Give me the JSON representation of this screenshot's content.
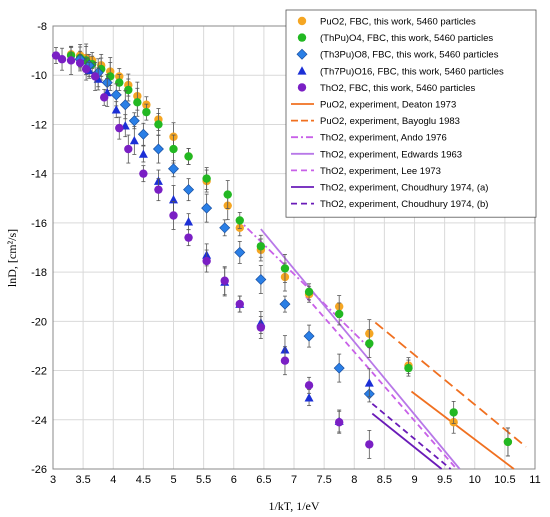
{
  "chart_data": {
    "type": "scatter",
    "title": "",
    "xlabel": "1/kT, 1/eV",
    "ylabel": "lnD, [cm²/s]",
    "xlim": [
      3,
      11
    ],
    "ylim": [
      -26,
      -8
    ],
    "x_ticks": [
      "3",
      "3.5",
      "4",
      "4.5",
      "5",
      "5.5",
      "6",
      "6.5",
      "7",
      "7.5",
      "8",
      "8.5",
      "9",
      "9.5",
      "10",
      "10.5",
      "11"
    ],
    "y_ticks": [
      "-8",
      "-10",
      "-12",
      "-14",
      "-16",
      "-18",
      "-20",
      "-22",
      "-24",
      "-26"
    ],
    "grid": true,
    "legend_position": "top-right",
    "series": [
      {
        "name": "PuO2, FBC, this work, 5460 particles",
        "kind": "scatter",
        "marker": "circle",
        "color": "#f5a623",
        "points": [
          [
            3.3,
            -9.15
          ],
          [
            3.45,
            -9.2
          ],
          [
            3.55,
            -9.3
          ],
          [
            3.65,
            -9.4
          ],
          [
            3.8,
            -9.6
          ],
          [
            3.95,
            -9.85
          ],
          [
            4.1,
            -10.05
          ],
          [
            4.25,
            -10.4
          ],
          [
            4.4,
            -10.85
          ],
          [
            4.55,
            -11.2
          ],
          [
            4.75,
            -11.8
          ],
          [
            5.0,
            -12.5
          ],
          [
            5.25,
            -13.3
          ],
          [
            5.55,
            -14.3
          ],
          [
            5.9,
            -15.3
          ],
          [
            6.1,
            -16.2
          ],
          [
            6.45,
            -17.1
          ],
          [
            6.85,
            -18.2
          ],
          [
            7.25,
            -18.9
          ],
          [
            7.75,
            -19.4
          ],
          [
            8.25,
            -20.5
          ],
          [
            8.9,
            -21.8
          ],
          [
            9.65,
            -24.1
          ],
          [
            10.55,
            -24.9
          ]
        ]
      },
      {
        "name": "(ThPu)O4, FBC, this work, 5460 particles",
        "kind": "scatter",
        "marker": "circle",
        "color": "#22b822",
        "points": [
          [
            3.3,
            -9.2
          ],
          [
            3.45,
            -9.3
          ],
          [
            3.55,
            -9.4
          ],
          [
            3.65,
            -9.55
          ],
          [
            3.8,
            -9.75
          ],
          [
            3.95,
            -10.05
          ],
          [
            4.1,
            -10.3
          ],
          [
            4.25,
            -10.6
          ],
          [
            4.4,
            -11.1
          ],
          [
            4.55,
            -11.5
          ],
          [
            4.75,
            -12.0
          ],
          [
            5.0,
            -13.0
          ],
          [
            5.25,
            -13.3
          ],
          [
            5.55,
            -14.2
          ],
          [
            5.9,
            -14.85
          ],
          [
            6.1,
            -15.9
          ],
          [
            6.45,
            -16.95
          ],
          [
            6.85,
            -17.85
          ],
          [
            7.25,
            -18.8
          ],
          [
            7.75,
            -19.7
          ],
          [
            8.25,
            -20.9
          ],
          [
            8.9,
            -21.9
          ],
          [
            9.65,
            -23.7
          ],
          [
            10.55,
            -24.9
          ]
        ]
      },
      {
        "name": "(Th3Pu)O8, FBC, this work, 5460 particles",
        "kind": "scatter",
        "marker": "diamond",
        "color": "#2a7fe6",
        "points": [
          [
            3.45,
            -9.35
          ],
          [
            3.6,
            -9.6
          ],
          [
            3.75,
            -9.9
          ],
          [
            3.9,
            -10.3
          ],
          [
            4.05,
            -10.8
          ],
          [
            4.2,
            -11.2
          ],
          [
            4.35,
            -11.85
          ],
          [
            4.5,
            -12.4
          ],
          [
            4.75,
            -13.0
          ],
          [
            5.0,
            -13.8
          ],
          [
            5.25,
            -14.65
          ],
          [
            5.55,
            -15.4
          ],
          [
            5.85,
            -16.2
          ],
          [
            6.1,
            -17.2
          ],
          [
            6.45,
            -18.3
          ],
          [
            6.85,
            -19.3
          ],
          [
            7.25,
            -20.6
          ],
          [
            7.75,
            -21.9
          ],
          [
            8.25,
            -22.95
          ]
        ]
      },
      {
        "name": "(Th7Pu)O16, FBC, this work, 5460 particles",
        "kind": "scatter",
        "marker": "triangle",
        "color": "#1b2fd6",
        "points": [
          [
            3.6,
            -9.8
          ],
          [
            3.75,
            -10.15
          ],
          [
            3.9,
            -10.7
          ],
          [
            4.05,
            -11.4
          ],
          [
            4.2,
            -12.05
          ],
          [
            4.35,
            -12.65
          ],
          [
            4.5,
            -13.2
          ],
          [
            4.75,
            -14.3
          ],
          [
            5.0,
            -15.05
          ],
          [
            5.25,
            -15.95
          ],
          [
            5.55,
            -17.3
          ],
          [
            5.85,
            -18.4
          ],
          [
            6.1,
            -19.3
          ],
          [
            6.45,
            -20.05
          ],
          [
            6.85,
            -21.15
          ],
          [
            7.25,
            -23.1
          ],
          [
            7.75,
            -24.05
          ],
          [
            8.25,
            -22.5
          ]
        ]
      },
      {
        "name": "ThO2, FBC, this work, 5460 particles",
        "kind": "scatter",
        "marker": "circle",
        "color": "#7a1fc4",
        "points": [
          [
            3.05,
            -9.2
          ],
          [
            3.15,
            -9.35
          ],
          [
            3.3,
            -9.4
          ],
          [
            3.45,
            -9.5
          ],
          [
            3.55,
            -9.75
          ],
          [
            3.7,
            -10.05
          ],
          [
            3.85,
            -10.9
          ],
          [
            4.1,
            -12.15
          ],
          [
            4.25,
            -13.0
          ],
          [
            4.5,
            -14.0
          ],
          [
            4.75,
            -14.65
          ],
          [
            5.0,
            -15.7
          ],
          [
            5.25,
            -16.6
          ],
          [
            5.55,
            -17.55
          ],
          [
            5.85,
            -18.35
          ],
          [
            6.1,
            -19.3
          ],
          [
            6.45,
            -20.25
          ],
          [
            6.85,
            -21.6
          ],
          [
            7.25,
            -22.6
          ],
          [
            7.75,
            -24.1
          ],
          [
            8.25,
            -25.0
          ]
        ]
      },
      {
        "name": "PuO2, experiment, Deaton 1973",
        "kind": "line",
        "dash": "solid",
        "color": "#f07020",
        "points": [
          [
            8.95,
            -22.85
          ],
          [
            10.65,
            -26.0
          ]
        ]
      },
      {
        "name": "PuO2, experiment, Bayoglu 1983",
        "kind": "line",
        "dash": "long-dash",
        "color": "#f07020",
        "points": [
          [
            8.35,
            -20.05
          ],
          [
            10.85,
            -25.1
          ]
        ]
      },
      {
        "name": "ThO2, experiment, Ando 1976",
        "kind": "line",
        "dash": "dash-dot",
        "color": "#c860e8",
        "points": [
          [
            6.05,
            -15.8
          ],
          [
            8.3,
            -21.2
          ]
        ]
      },
      {
        "name": "ThO2, experiment, Edwards 1963",
        "kind": "line",
        "dash": "solid",
        "color": "#b878e8",
        "points": [
          [
            6.45,
            -16.25
          ],
          [
            9.75,
            -26.0
          ]
        ]
      },
      {
        "name": "ThO2, experiment, Lee 1973",
        "kind": "line",
        "dash": "dash",
        "color": "#c860e8",
        "points": [
          [
            7.2,
            -19.0
          ],
          [
            9.7,
            -26.0
          ]
        ]
      },
      {
        "name": "ThO2, experiment, Choudhury 1974, (a)",
        "kind": "line",
        "dash": "solid",
        "color": "#6a1bb8",
        "points": [
          [
            8.3,
            -23.75
          ],
          [
            9.45,
            -26.0
          ]
        ]
      },
      {
        "name": "ThO2, experiment, Choudhury 1974, (b)",
        "kind": "line",
        "dash": "dash",
        "color": "#6a1bb8",
        "points": [
          [
            8.3,
            -23.35
          ],
          [
            9.6,
            -26.0
          ]
        ]
      }
    ]
  }
}
